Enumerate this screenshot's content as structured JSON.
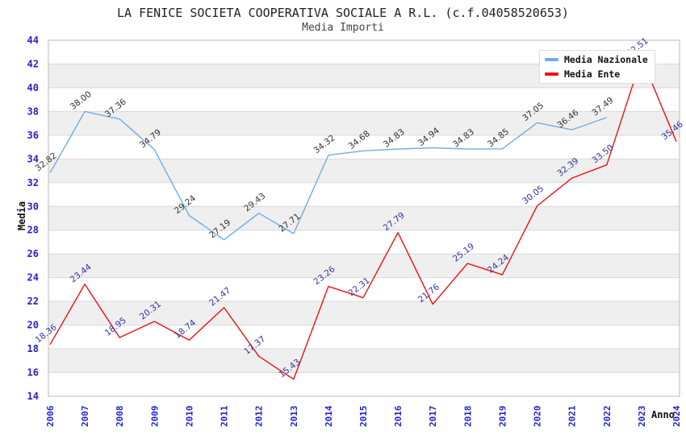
{
  "chart_data": {
    "type": "line",
    "title": "LA FENICE SOCIETA COOPERATIVA SOCIALE A R.L. (c.f.04058520653)",
    "subtitle": "Media Importi",
    "xlabel": "Anno",
    "ylabel": "Media",
    "ylim": [
      14,
      44
    ],
    "ytick_step": 2,
    "grid": "horizontal-bands",
    "legend_position": "top-right",
    "categories": [
      "2006",
      "2007",
      "2008",
      "2009",
      "2010",
      "2011",
      "2012",
      "2013",
      "2014",
      "2015",
      "2016",
      "2017",
      "2018",
      "2019",
      "2020",
      "2021",
      "2022",
      "2023",
      "2024"
    ],
    "series": [
      {
        "name": "Media Nazionale",
        "color": "#6fade6",
        "label_color": "#333333",
        "values": [
          32.82,
          38.0,
          37.36,
          34.79,
          29.24,
          27.19,
          29.43,
          27.71,
          34.32,
          34.68,
          34.83,
          34.94,
          34.83,
          34.85,
          37.05,
          36.46,
          37.49,
          null,
          null
        ]
      },
      {
        "name": "Media Ente",
        "color": "#ee1111",
        "label_color": "#333399",
        "values": [
          18.36,
          23.44,
          18.95,
          20.31,
          18.74,
          21.47,
          17.37,
          15.43,
          23.26,
          22.31,
          27.79,
          21.76,
          25.19,
          24.24,
          30.05,
          32.39,
          33.5,
          42.51,
          35.46
        ]
      }
    ],
    "styles": {
      "axis_tick_color": "#2222cc",
      "band_fill": "#efefef",
      "grid_color": "#d9d9d9",
      "border_color": "#bbbbbb",
      "title_color": "#222222",
      "subtitle_color": "#444444",
      "background": "#ffffff"
    }
  }
}
